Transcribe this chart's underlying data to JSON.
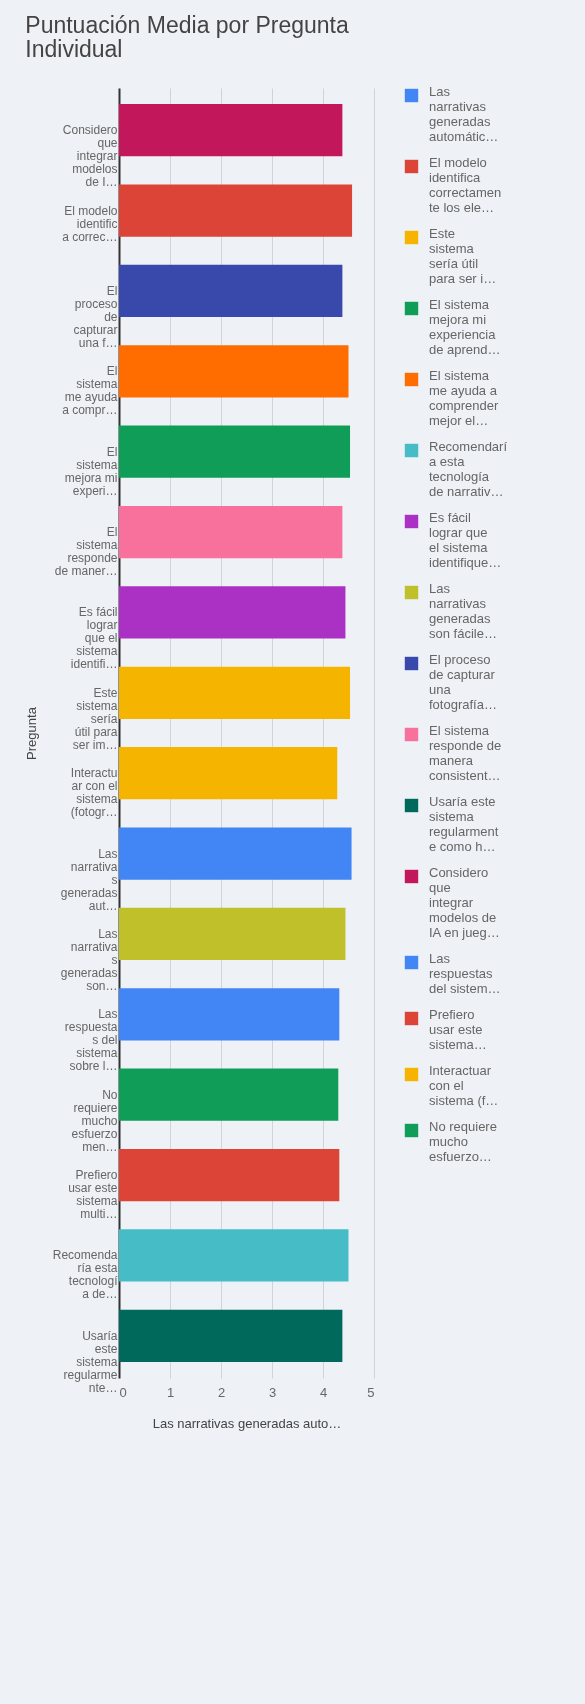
{
  "chart_data": {
    "type": "bar",
    "orientation": "horizontal",
    "title": "Puntuación Media por Pregunta Individual",
    "xlabel": "Las narrativas generadas auto…",
    "ylabel": "Pregunta",
    "categories": [
      "Considero que integrar modelos de I…",
      "El modelo identifica correc…",
      "El proceso de capturar una f…",
      "El sistema me ayuda a compr…",
      "El sistema mejora mi experi…",
      "El sistema responde de maner…",
      "Es fácil lograr que el sistema identifi…",
      "Este sistema sería útil para ser im…",
      "Interactuar con el sistema (fotogr…",
      "Las narrativas generadas aut…",
      "Las narrativas generadas son…",
      "Las respuestas del sistema sobre l…",
      "No requiere mucho esfuerzo men…",
      "Prefiero usar este sistema multi…",
      "Recomendaría esta tecnología de…",
      "Usaría este sistema regularmente…"
    ],
    "series": [
      {
        "name": "Las narrativas generadas automátic…",
        "color": "#4285f4",
        "values": [
          null,
          null,
          null,
          null,
          null,
          null,
          null,
          null,
          null,
          4.56,
          null,
          null,
          null,
          null,
          null,
          null
        ]
      },
      {
        "name": "El modelo identifica correctamente los ele…",
        "color": "#db4437",
        "values": [
          null,
          4.57,
          null,
          null,
          null,
          null,
          null,
          null,
          null,
          null,
          null,
          null,
          null,
          null,
          null,
          null
        ]
      },
      {
        "name": "Este sistema sería útil para ser i…",
        "color": "#f4b400",
        "values": [
          null,
          null,
          null,
          null,
          null,
          null,
          null,
          4.53,
          null,
          null,
          null,
          null,
          null,
          null,
          null,
          null
        ]
      },
      {
        "name": "El sistema mejora mi experiencia de aprend…",
        "color": "#0f9d58",
        "values": [
          null,
          null,
          null,
          null,
          4.53,
          null,
          null,
          null,
          null,
          null,
          null,
          null,
          null,
          null,
          null,
          null
        ]
      },
      {
        "name": "El sistema me ayuda a comprender mejor el…",
        "color": "#ff6d01",
        "values": [
          null,
          null,
          null,
          4.5,
          null,
          null,
          null,
          null,
          null,
          null,
          null,
          null,
          null,
          null,
          null,
          null
        ]
      },
      {
        "name": "Recomendaría esta tecnología de narrativ…",
        "color": "#46bdc6",
        "values": [
          null,
          null,
          null,
          null,
          null,
          null,
          null,
          null,
          null,
          null,
          null,
          null,
          null,
          null,
          4.5,
          null
        ]
      },
      {
        "name": "Es fácil lograr que el sistema identifique…",
        "color": "#ab30c4",
        "values": [
          null,
          null,
          null,
          null,
          null,
          null,
          4.44,
          null,
          null,
          null,
          null,
          null,
          null,
          null,
          null,
          null
        ]
      },
      {
        "name": "Las narrativas generadas son fácile…",
        "color": "#c0c02a",
        "values": [
          null,
          null,
          null,
          null,
          null,
          null,
          null,
          null,
          null,
          null,
          4.44,
          null,
          null,
          null,
          null,
          null
        ]
      },
      {
        "name": "El proceso de capturar una fotografía…",
        "color": "#3949ab",
        "values": [
          null,
          null,
          4.38,
          null,
          null,
          null,
          null,
          null,
          null,
          null,
          null,
          null,
          null,
          null,
          null,
          null
        ]
      },
      {
        "name": "El sistema responde de manera consistent…",
        "color": "#f7719c",
        "values": [
          null,
          null,
          null,
          null,
          null,
          4.38,
          null,
          null,
          null,
          null,
          null,
          null,
          null,
          null,
          null,
          null
        ]
      },
      {
        "name": "Usaría este sistema regularmente como h…",
        "color": "#00695c",
        "values": [
          null,
          null,
          null,
          null,
          null,
          null,
          null,
          null,
          null,
          null,
          null,
          null,
          null,
          null,
          null,
          4.38
        ]
      },
      {
        "name": "Considero que integrar modelos de IA en jueg…",
        "color": "#c2185b",
        "values": [
          4.38,
          null,
          null,
          null,
          null,
          null,
          null,
          null,
          null,
          null,
          null,
          null,
          null,
          null,
          null,
          null
        ]
      },
      {
        "name": "Las respuestas del sistem…",
        "color": "#4285f4",
        "values": [
          null,
          null,
          null,
          null,
          null,
          null,
          null,
          null,
          null,
          null,
          null,
          4.32,
          null,
          null,
          null,
          null
        ]
      },
      {
        "name": "Prefiero usar este sistema…",
        "color": "#db4437",
        "values": [
          null,
          null,
          null,
          null,
          null,
          null,
          null,
          null,
          null,
          null,
          null,
          null,
          null,
          4.32,
          null,
          null
        ]
      },
      {
        "name": "Interactuar con el sistema (f…",
        "color": "#f4b400",
        "values": [
          null,
          null,
          null,
          null,
          null,
          null,
          null,
          null,
          4.28,
          null,
          null,
          null,
          null,
          null,
          null,
          null
        ]
      },
      {
        "name": "No requiere mucho esfuerzo…",
        "color": "#0f9d58",
        "values": [
          null,
          null,
          null,
          null,
          null,
          null,
          null,
          null,
          null,
          null,
          null,
          null,
          4.3,
          null,
          null,
          null
        ]
      }
    ],
    "xlim": [
      0,
      5
    ],
    "xticks": [
      0,
      1,
      2,
      3,
      4,
      5
    ],
    "grid": "x",
    "legend": "right"
  }
}
